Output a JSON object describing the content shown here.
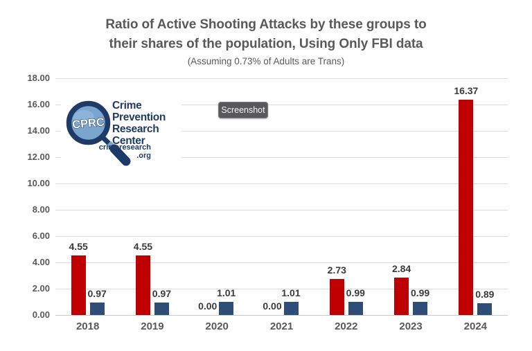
{
  "title": {
    "line1": "Ratio of Active Shooting Attacks by these groups to",
    "line2": "their shares of the population, Using Only FBI data",
    "subtitle": "(Assuming 0.73% of Adults are Trans)"
  },
  "badge": {
    "label": "Screenshot"
  },
  "logo": {
    "acronym": "CPRC",
    "name_line1": "Crime",
    "name_line2": "Prevention",
    "name_line3": "Research",
    "name_line4": "Center",
    "url_line1": "crimeresearch",
    "url_line2": ".org",
    "navy": "#1e3a66",
    "lens_blue": "#79a5cf"
  },
  "chart_data": {
    "type": "bar",
    "title": "Ratio of Active Shooting Attacks by these groups to their shares of the population, Using Only FBI data",
    "subtitle": "(Assuming 0.73% of Adults are Trans)",
    "categories": [
      "2018",
      "2019",
      "2020",
      "2021",
      "2022",
      "2023",
      "2024"
    ],
    "series": [
      {
        "name": "red",
        "color": "#c00000",
        "values": [
          4.55,
          4.55,
          0.0,
          0.0,
          2.73,
          2.84,
          16.37
        ]
      },
      {
        "name": "blue",
        "color": "#2e4d77",
        "values": [
          0.97,
          0.97,
          1.01,
          1.01,
          0.99,
          0.99,
          0.89
        ]
      }
    ],
    "xlabel": "",
    "ylabel": "",
    "ylim": [
      0,
      18
    ],
    "ytick_step": 2,
    "ytick_decimals": 2,
    "value_label_decimals": 2,
    "grid": true,
    "legend": "none"
  }
}
